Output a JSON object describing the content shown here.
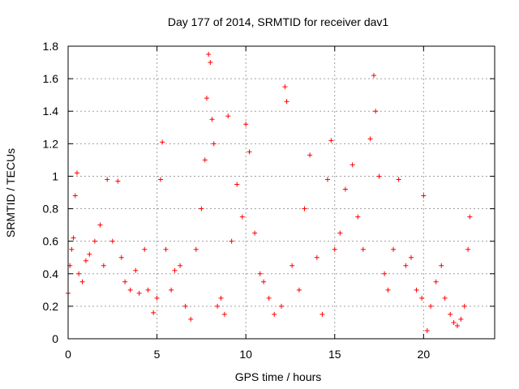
{
  "chart_data": {
    "type": "scatter",
    "title": "Day 177 of 2014, SRMTID for receiver dav1",
    "xlabel": "GPS time / hours",
    "ylabel": "SRMTID / TECUs",
    "xlim": [
      0,
      24
    ],
    "ylim": [
      0,
      1.8
    ],
    "xticks": [
      0,
      5,
      10,
      15,
      20
    ],
    "xtick_labels": [
      "0",
      "5",
      "10",
      "15",
      "20"
    ],
    "yticks": [
      0,
      0.2,
      0.4,
      0.6,
      0.8,
      1,
      1.2,
      1.4,
      1.6,
      1.8
    ],
    "ytick_labels": [
      "0",
      "0.2",
      "0.4",
      "0.6",
      "0.8",
      "1",
      "1.2",
      "1.4",
      "1.6",
      "1.8"
    ],
    "grid": true,
    "marker": "+",
    "series": [
      {
        "name": "SRMTID",
        "color": "#ff0000",
        "data_range_hours": [
          0,
          22.6
        ],
        "points": [
          [
            0.0,
            0.28
          ],
          [
            0.1,
            0.45
          ],
          [
            0.2,
            0.55
          ],
          [
            0.3,
            0.62
          ],
          [
            0.4,
            0.88
          ],
          [
            0.5,
            1.02
          ],
          [
            0.6,
            0.4
          ],
          [
            0.8,
            0.35
          ],
          [
            1.0,
            0.48
          ],
          [
            1.2,
            0.52
          ],
          [
            1.5,
            0.6
          ],
          [
            1.8,
            0.7
          ],
          [
            2.0,
            0.45
          ],
          [
            2.2,
            0.98
          ],
          [
            2.5,
            0.6
          ],
          [
            2.8,
            0.97
          ],
          [
            3.0,
            0.5
          ],
          [
            3.2,
            0.35
          ],
          [
            3.5,
            0.3
          ],
          [
            3.8,
            0.42
          ],
          [
            4.0,
            0.28
          ],
          [
            4.3,
            0.55
          ],
          [
            4.5,
            0.3
          ],
          [
            4.8,
            0.16
          ],
          [
            5.0,
            0.25
          ],
          [
            5.2,
            0.98
          ],
          [
            5.3,
            1.21
          ],
          [
            5.5,
            0.55
          ],
          [
            5.8,
            0.3
          ],
          [
            6.0,
            0.42
          ],
          [
            6.3,
            0.45
          ],
          [
            6.6,
            0.2
          ],
          [
            6.9,
            0.12
          ],
          [
            7.2,
            0.55
          ],
          [
            7.5,
            0.8
          ],
          [
            7.7,
            1.1
          ],
          [
            7.8,
            1.48
          ],
          [
            7.9,
            1.75
          ],
          [
            8.0,
            1.7
          ],
          [
            8.1,
            1.35
          ],
          [
            8.2,
            1.2
          ],
          [
            8.4,
            0.2
          ],
          [
            8.6,
            0.25
          ],
          [
            8.8,
            0.15
          ],
          [
            9.0,
            1.37
          ],
          [
            9.2,
            0.6
          ],
          [
            9.5,
            0.95
          ],
          [
            9.8,
            0.75
          ],
          [
            10.0,
            1.32
          ],
          [
            10.2,
            1.15
          ],
          [
            10.5,
            0.65
          ],
          [
            10.8,
            0.4
          ],
          [
            11.0,
            0.35
          ],
          [
            11.3,
            0.25
          ],
          [
            11.6,
            0.15
          ],
          [
            12.0,
            0.2
          ],
          [
            12.2,
            1.55
          ],
          [
            12.3,
            1.46
          ],
          [
            12.6,
            0.45
          ],
          [
            13.0,
            0.3
          ],
          [
            13.3,
            0.8
          ],
          [
            13.6,
            1.13
          ],
          [
            14.0,
            0.5
          ],
          [
            14.3,
            0.15
          ],
          [
            14.6,
            0.98
          ],
          [
            14.8,
            1.22
          ],
          [
            15.0,
            0.55
          ],
          [
            15.3,
            0.65
          ],
          [
            15.6,
            0.92
          ],
          [
            16.0,
            1.07
          ],
          [
            16.3,
            0.75
          ],
          [
            16.6,
            0.55
          ],
          [
            17.0,
            1.23
          ],
          [
            17.2,
            1.62
          ],
          [
            17.3,
            1.4
          ],
          [
            17.5,
            1.0
          ],
          [
            17.8,
            0.4
          ],
          [
            18.0,
            0.3
          ],
          [
            18.3,
            0.55
          ],
          [
            18.6,
            0.98
          ],
          [
            19.0,
            0.45
          ],
          [
            19.3,
            0.5
          ],
          [
            19.6,
            0.3
          ],
          [
            19.9,
            0.25
          ],
          [
            20.0,
            0.88
          ],
          [
            20.2,
            0.05
          ],
          [
            20.4,
            0.2
          ],
          [
            20.7,
            0.35
          ],
          [
            21.0,
            0.45
          ],
          [
            21.2,
            0.25
          ],
          [
            21.5,
            0.15
          ],
          [
            21.7,
            0.1
          ],
          [
            21.9,
            0.08
          ],
          [
            22.1,
            0.12
          ],
          [
            22.3,
            0.2
          ],
          [
            22.5,
            0.55
          ],
          [
            22.6,
            0.75
          ]
        ]
      }
    ]
  }
}
